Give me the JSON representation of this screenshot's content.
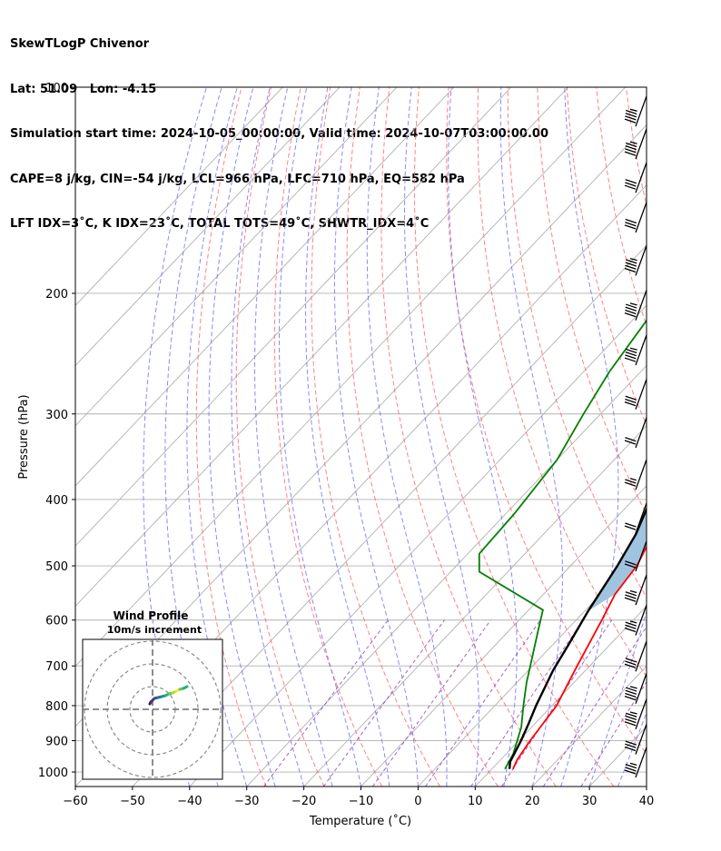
{
  "header": {
    "lines": [
      "SkewTLogP Chivenor",
      "Lat: 51.09   Lon: -4.15",
      "Simulation start time: 2024-10-05_00:00:00, Valid time: 2024-10-07T03:00:00.00",
      "CAPE=8 j/kg, CIN=-54 j/kg, LCL=966 hPa, LFC=710 hPa, EQ=582 hPa",
      "LFT IDX=3˚C, K IDX=23˚C, TOTAL TOTS=49˚C, SHWTR_IDX=4˚C"
    ]
  },
  "chart_data": {
    "type": "line",
    "subtype": "skew-T log-P diagram",
    "xlabel": "Temperature (˚C)",
    "ylabel": "Pressure (hPa)",
    "xlim": [
      -60,
      40
    ],
    "ylim": [
      1050,
      100
    ],
    "y_scale": "log",
    "x_ticks": [
      -60,
      -50,
      -40,
      -30,
      -20,
      -10,
      0,
      10,
      20,
      30,
      40
    ],
    "x_tick_labels": [
      "−60",
      "−50",
      "−40",
      "−30",
      "−20",
      "−10",
      "0",
      "10",
      "20",
      "30",
      "40"
    ],
    "y_ticks": [
      1000,
      900,
      800,
      700,
      600,
      500,
      400,
      300,
      200,
      100
    ],
    "y_tick_labels": [
      "1000",
      "900",
      "800",
      "700",
      "600",
      "500",
      "400",
      "300",
      "200",
      "100"
    ],
    "grid": true,
    "colors": {
      "temperature": "#ff0000",
      "dewpoint": "#008000",
      "parcel": "#000000",
      "cape_fill": "#a0c4df",
      "dry_adiabats": "#ff6b6b",
      "moist_adiabats": "#6b6bff",
      "mixing_ratio": "#8b3dbb",
      "isotherms": "#b0b0b0",
      "mixing_ratio_blue": "#4b4bff"
    },
    "series": [
      {
        "key": "temperature",
        "points": [
          [
            13.7,
            990
          ],
          [
            12.9,
            960
          ],
          [
            12.0,
            900
          ],
          [
            10.8,
            800
          ],
          [
            7.8,
            700
          ],
          [
            4.5,
            600
          ],
          [
            2.5,
            550
          ],
          [
            1.6,
            500
          ],
          [
            -0.8,
            450
          ],
          [
            -4.5,
            400
          ],
          [
            -8.5,
            350
          ],
          [
            -10.7,
            300
          ],
          [
            -9.5,
            270
          ],
          [
            -6.5,
            250
          ],
          [
            -2.5,
            220
          ],
          [
            0.5,
            200
          ],
          [
            4.0,
            170
          ],
          [
            6.0,
            150
          ],
          [
            7.5,
            130
          ],
          [
            9.0,
            115
          ],
          [
            11.0,
            105
          ],
          [
            12.5,
            100
          ]
        ]
      },
      {
        "key": "dewpoint",
        "points": [
          [
            12.3,
            990
          ],
          [
            11.2,
            940
          ],
          [
            8.2,
            860
          ],
          [
            5.0,
            800
          ],
          [
            1.7,
            740
          ],
          [
            -1.5,
            680
          ],
          [
            -5.0,
            620
          ],
          [
            -7.5,
            580
          ],
          [
            -25.0,
            510
          ],
          [
            -28.0,
            480
          ],
          [
            -28.5,
            420
          ],
          [
            -30.0,
            350
          ],
          [
            -33.0,
            300
          ],
          [
            -35.5,
            260
          ],
          [
            -38.0,
            210
          ],
          [
            -40.0,
            180
          ],
          [
            -40.0,
            170
          ],
          [
            -36.5,
            150
          ],
          [
            -29.0,
            120
          ],
          [
            -24.0,
            100
          ]
        ]
      },
      {
        "key": "parcel",
        "points": [
          [
            13.1,
            990
          ],
          [
            12.0,
            966
          ],
          [
            10.4,
            900
          ],
          [
            8.9,
            850
          ],
          [
            7.2,
            800
          ],
          [
            4.3,
            710
          ],
          [
            2.7,
            650
          ],
          [
            0.6,
            582
          ],
          [
            -1.8,
            500
          ],
          [
            -3.8,
            450
          ],
          [
            -7.0,
            400
          ],
          [
            -12.0,
            350
          ],
          [
            -16.5,
            300
          ],
          [
            -21.0,
            250
          ],
          [
            -25.5,
            200
          ],
          [
            -29.0,
            170
          ],
          [
            -31.5,
            150
          ],
          [
            -34.0,
            130
          ],
          [
            -36.5,
            100
          ]
        ]
      }
    ],
    "wind_barbs": [
      {
        "p": 1000,
        "speed_kt": 25
      },
      {
        "p": 925,
        "speed_kt": 30
      },
      {
        "p": 850,
        "speed_kt": 35
      },
      {
        "p": 780,
        "speed_kt": 35
      },
      {
        "p": 700,
        "speed_kt": 30
      },
      {
        "p": 620,
        "speed_kt": 25
      },
      {
        "p": 560,
        "speed_kt": 25
      },
      {
        "p": 500,
        "speed_kt": 20
      },
      {
        "p": 440,
        "speed_kt": 20
      },
      {
        "p": 380,
        "speed_kt": 15
      },
      {
        "p": 330,
        "speed_kt": 20
      },
      {
        "p": 290,
        "speed_kt": 30
      },
      {
        "p": 250,
        "speed_kt": 35
      },
      {
        "p": 215,
        "speed_kt": 35
      },
      {
        "p": 185,
        "speed_kt": 35
      },
      {
        "p": 160,
        "speed_kt": 30
      },
      {
        "p": 140,
        "speed_kt": 30
      },
      {
        "p": 125,
        "speed_kt": 35
      },
      {
        "p": 112,
        "speed_kt": 35
      }
    ],
    "inset": {
      "title": "Wind Profile",
      "subtitle": "10m/s increment",
      "type": "hodograph",
      "ring_step_ms": 10
    }
  }
}
